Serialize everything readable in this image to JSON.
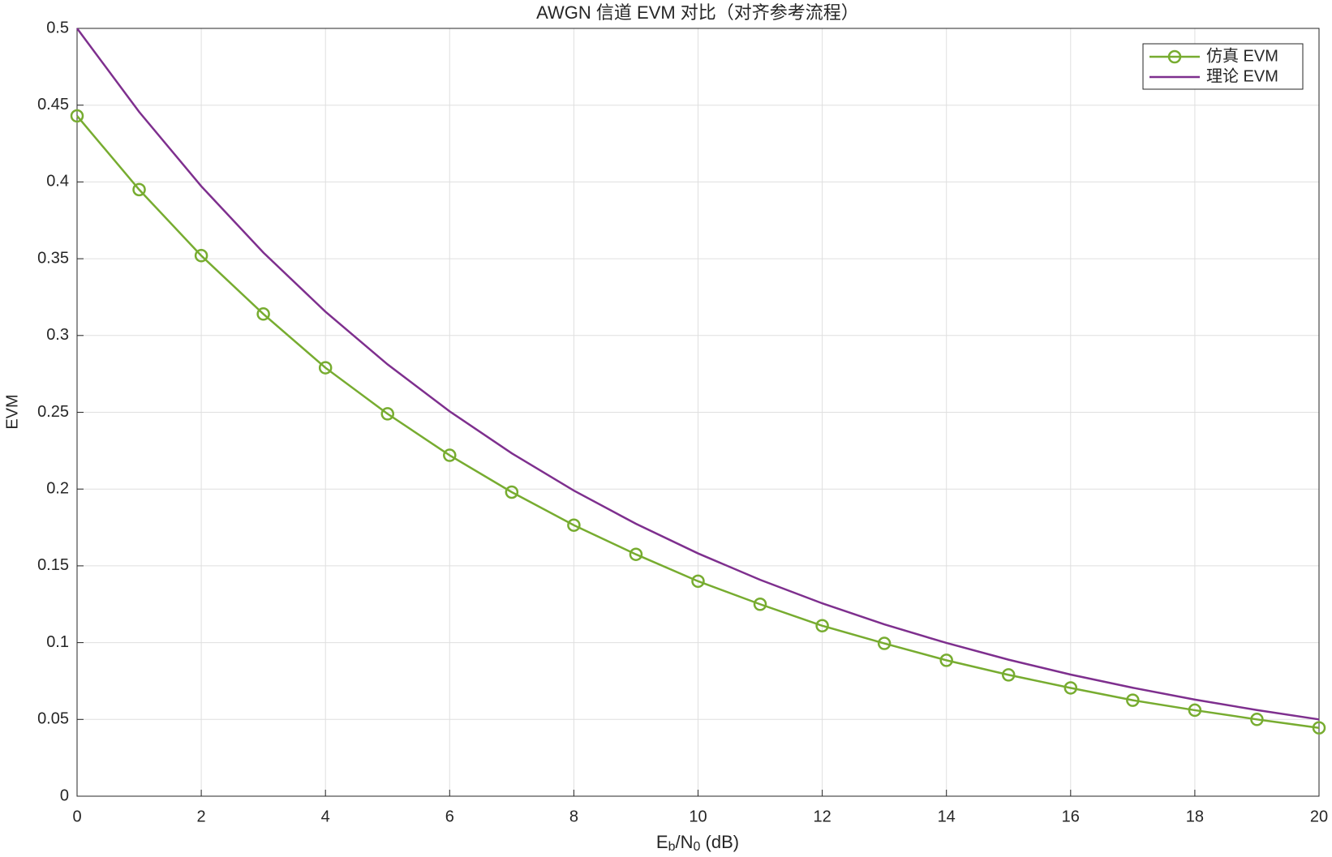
{
  "chart_data": {
    "type": "line",
    "title": "AWGN 信道 EVM 对比（对齐参考流程）",
    "xlabel": [
      "E",
      "b",
      "/N",
      "0",
      "  (dB)"
    ],
    "ylabel": "EVM",
    "x": [
      0,
      1,
      2,
      3,
      4,
      5,
      6,
      7,
      8,
      9,
      10,
      11,
      12,
      13,
      14,
      15,
      16,
      17,
      18,
      19,
      20
    ],
    "series": [
      {
        "name": "仿真 EVM",
        "color": "#77ac30",
        "marker": "circle",
        "values": [
          0.443,
          0.395,
          0.352,
          0.314,
          0.279,
          0.249,
          0.222,
          0.198,
          0.1765,
          0.1575,
          0.14,
          0.125,
          0.111,
          0.0995,
          0.0885,
          0.079,
          0.0705,
          0.0625,
          0.056,
          0.05,
          0.0445
        ]
      },
      {
        "name": "理论 EVM",
        "color": "#7e2f8e",
        "values": [
          0.5,
          0.4456,
          0.3972,
          0.354,
          0.3155,
          0.2812,
          0.2506,
          0.2233,
          0.199,
          0.1774,
          0.1581,
          0.1409,
          0.1256,
          0.1119,
          0.0998,
          0.0889,
          0.0792,
          0.0706,
          0.0629,
          0.0561,
          0.05
        ]
      }
    ],
    "xlim": [
      0,
      20
    ],
    "xticks": [
      0,
      2,
      4,
      6,
      8,
      10,
      12,
      14,
      16,
      18,
      20
    ],
    "ylim": [
      0,
      0.5
    ],
    "yticks": [
      0,
      0.05,
      0.1,
      0.15,
      0.2,
      0.25,
      0.3,
      0.35,
      0.4,
      0.45,
      0.5
    ],
    "grid": true,
    "legend_position": "top-right"
  }
}
